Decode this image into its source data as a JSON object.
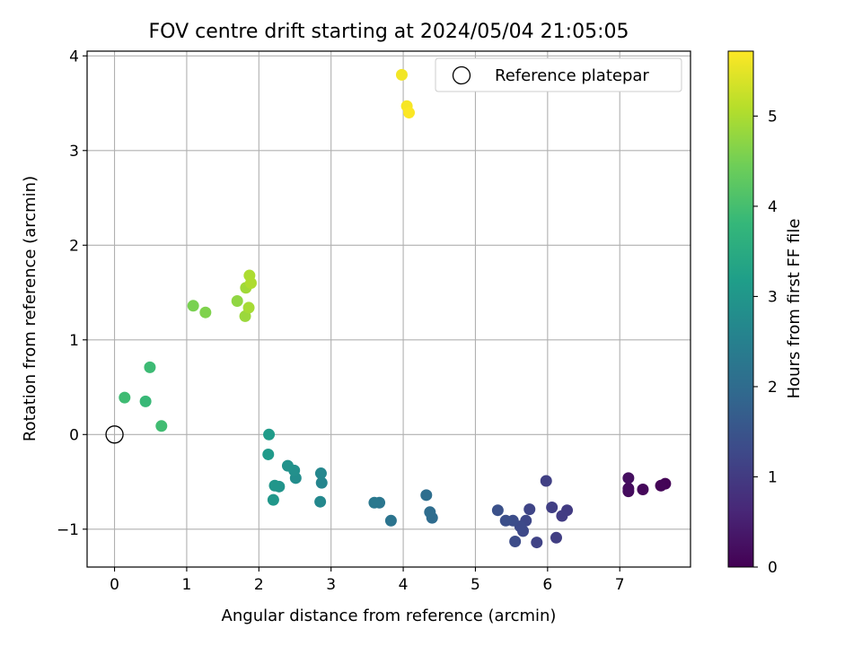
{
  "chart_data": {
    "type": "scatter",
    "title": "FOV centre drift starting at 2024/05/04 21:05:05",
    "xlabel": "Angular distance from reference (arcmin)",
    "ylabel": "Rotation from reference (arcmin)",
    "xlim": [
      -0.38,
      7.98
    ],
    "ylim": [
      -1.4,
      4.05
    ],
    "x_ticks": [
      0,
      1,
      2,
      3,
      4,
      5,
      6,
      7
    ],
    "y_ticks": [
      -1,
      0,
      1,
      2,
      3,
      4
    ],
    "x_tick_labels": [
      "0",
      "1",
      "2",
      "3",
      "4",
      "5",
      "6",
      "7"
    ],
    "y_tick_labels": [
      "−1",
      "0",
      "1",
      "2",
      "3",
      "4"
    ],
    "grid": true,
    "legend": {
      "placement": "top-right",
      "entries": [
        "Reference platepar"
      ]
    },
    "reference_point": {
      "name": "Reference platepar",
      "x": 0,
      "y": 0,
      "marker": "open-circle"
    },
    "colorbar": {
      "label": "Hours from first FF file",
      "range": [
        0,
        5.72
      ],
      "ticks": [
        0,
        1,
        2,
        3,
        4,
        5
      ],
      "tick_labels": [
        "0",
        "1",
        "2",
        "3",
        "4",
        "5"
      ],
      "colormap": "viridis",
      "colormap_stops": [
        "#440154",
        "#482878",
        "#3e4989",
        "#31688e",
        "#26828e",
        "#1f9e89",
        "#35b779",
        "#6ece58",
        "#b5de2b",
        "#fde725"
      ]
    },
    "points": [
      {
        "x": 7.63,
        "y": -0.52,
        "hours": 0.03
      },
      {
        "x": 7.57,
        "y": -0.54,
        "hours": 0.06
      },
      {
        "x": 7.32,
        "y": -0.58,
        "hours": 0.1
      },
      {
        "x": 7.12,
        "y": -0.6,
        "hours": 0.14
      },
      {
        "x": 7.12,
        "y": -0.57,
        "hours": 0.18
      },
      {
        "x": 7.12,
        "y": -0.46,
        "hours": 0.22
      },
      {
        "x": 6.27,
        "y": -0.8,
        "hours": 1.0
      },
      {
        "x": 6.2,
        "y": -0.86,
        "hours": 1.03
      },
      {
        "x": 6.12,
        "y": -1.09,
        "hours": 1.05
      },
      {
        "x": 6.06,
        "y": -0.77,
        "hours": 1.08
      },
      {
        "x": 5.98,
        "y": -0.49,
        "hours": 1.1
      },
      {
        "x": 5.85,
        "y": -1.14,
        "hours": 1.15
      },
      {
        "x": 5.75,
        "y": -0.79,
        "hours": 1.2
      },
      {
        "x": 5.7,
        "y": -0.91,
        "hours": 1.24
      },
      {
        "x": 5.66,
        "y": -1.02,
        "hours": 1.27
      },
      {
        "x": 5.62,
        "y": -0.97,
        "hours": 1.3
      },
      {
        "x": 5.55,
        "y": -1.13,
        "hours": 1.33
      },
      {
        "x": 5.52,
        "y": -0.91,
        "hours": 1.36
      },
      {
        "x": 5.42,
        "y": -0.91,
        "hours": 1.4
      },
      {
        "x": 5.31,
        "y": -0.8,
        "hours": 1.44
      },
      {
        "x": 4.4,
        "y": -0.88,
        "hours": 2.0
      },
      {
        "x": 4.37,
        "y": -0.82,
        "hours": 2.03
      },
      {
        "x": 4.32,
        "y": -0.64,
        "hours": 2.06
      },
      {
        "x": 3.83,
        "y": -0.91,
        "hours": 2.2
      },
      {
        "x": 3.67,
        "y": -0.72,
        "hours": 2.25
      },
      {
        "x": 3.6,
        "y": -0.72,
        "hours": 2.3
      },
      {
        "x": 2.87,
        "y": -0.51,
        "hours": 2.62
      },
      {
        "x": 2.86,
        "y": -0.41,
        "hours": 2.65
      },
      {
        "x": 2.85,
        "y": -0.71,
        "hours": 2.68
      },
      {
        "x": 2.51,
        "y": -0.46,
        "hours": 2.8
      },
      {
        "x": 2.49,
        "y": -0.38,
        "hours": 2.85
      },
      {
        "x": 2.4,
        "y": -0.33,
        "hours": 2.9
      },
      {
        "x": 2.28,
        "y": -0.55,
        "hours": 2.95
      },
      {
        "x": 2.22,
        "y": -0.54,
        "hours": 3.0
      },
      {
        "x": 2.2,
        "y": -0.69,
        "hours": 3.02
      },
      {
        "x": 2.13,
        "y": -0.21,
        "hours": 3.08
      },
      {
        "x": 2.14,
        "y": 0.0,
        "hours": 3.12
      },
      {
        "x": 0.65,
        "y": 0.09,
        "hours": 3.95
      },
      {
        "x": 0.49,
        "y": 0.71,
        "hours": 3.9
      },
      {
        "x": 0.43,
        "y": 0.35,
        "hours": 3.85
      },
      {
        "x": 0.14,
        "y": 0.39,
        "hours": 3.92
      },
      {
        "x": 1.09,
        "y": 1.36,
        "hours": 4.55
      },
      {
        "x": 1.26,
        "y": 1.29,
        "hours": 4.6
      },
      {
        "x": 1.7,
        "y": 1.41,
        "hours": 4.75
      },
      {
        "x": 1.81,
        "y": 1.25,
        "hours": 4.85
      },
      {
        "x": 1.82,
        "y": 1.55,
        "hours": 4.9
      },
      {
        "x": 1.86,
        "y": 1.34,
        "hours": 4.95
      },
      {
        "x": 1.87,
        "y": 1.68,
        "hours": 5.0
      },
      {
        "x": 1.89,
        "y": 1.6,
        "hours": 5.02
      },
      {
        "x": 3.98,
        "y": 3.8,
        "hours": 5.62
      },
      {
        "x": 4.05,
        "y": 3.47,
        "hours": 5.66
      },
      {
        "x": 4.08,
        "y": 3.4,
        "hours": 5.7
      }
    ]
  }
}
